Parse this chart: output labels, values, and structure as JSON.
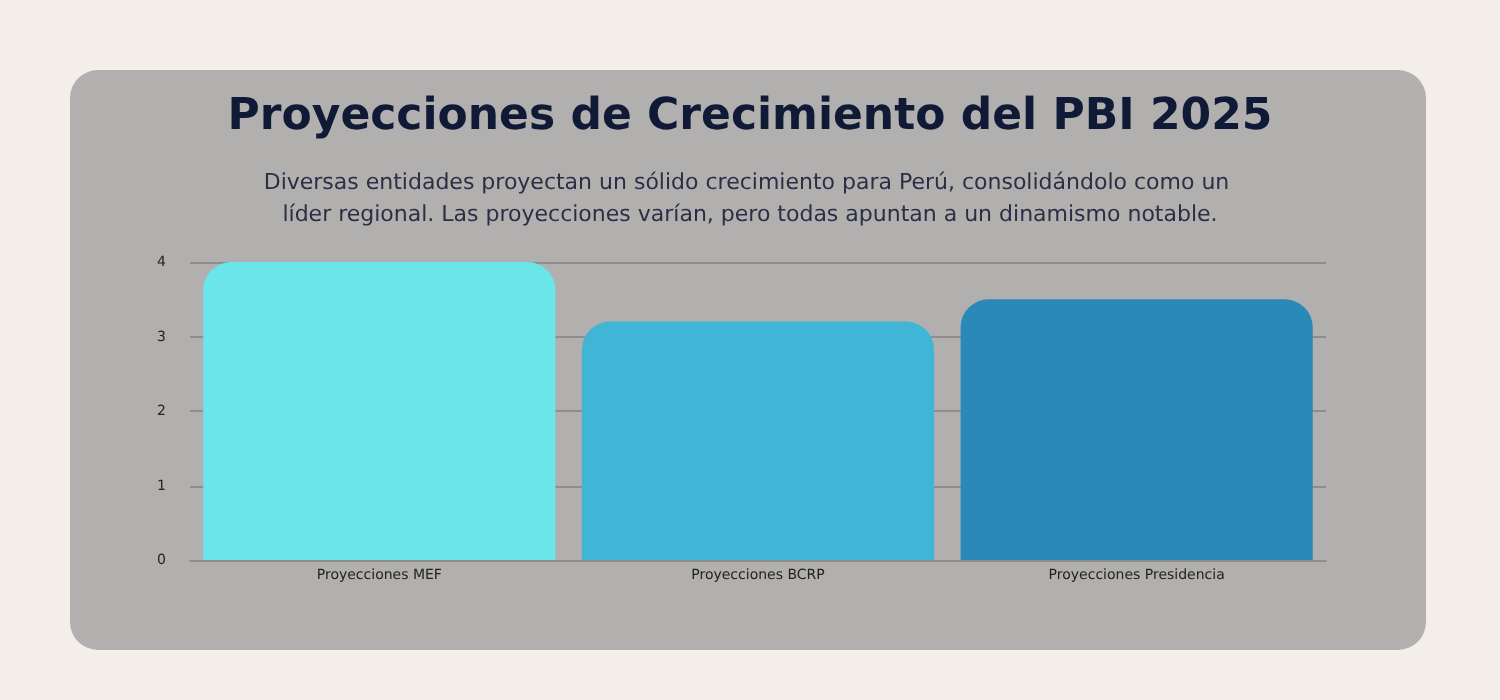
{
  "chart_data": {
    "type": "bar",
    "title": "Proyecciones de Crecimiento del PBI 2025",
    "subtitle": "Diversas entidades proyectan un sólido crecimiento para Perú, consolidándolo como un líder regional. Las proyecciones varían, pero todas apuntan a un dinamismo notable.",
    "categories": [
      "Proyecciones MEF",
      "Proyecciones BCRP",
      "Proyecciones Presidencia"
    ],
    "values": [
      4.0,
      3.2,
      3.5
    ],
    "colors": [
      "#6ae5ea",
      "#40b5d6",
      "#2b89ba"
    ],
    "ylim": [
      0,
      4
    ],
    "yticks": [
      0,
      1,
      2,
      3,
      4
    ],
    "grid": "y"
  }
}
